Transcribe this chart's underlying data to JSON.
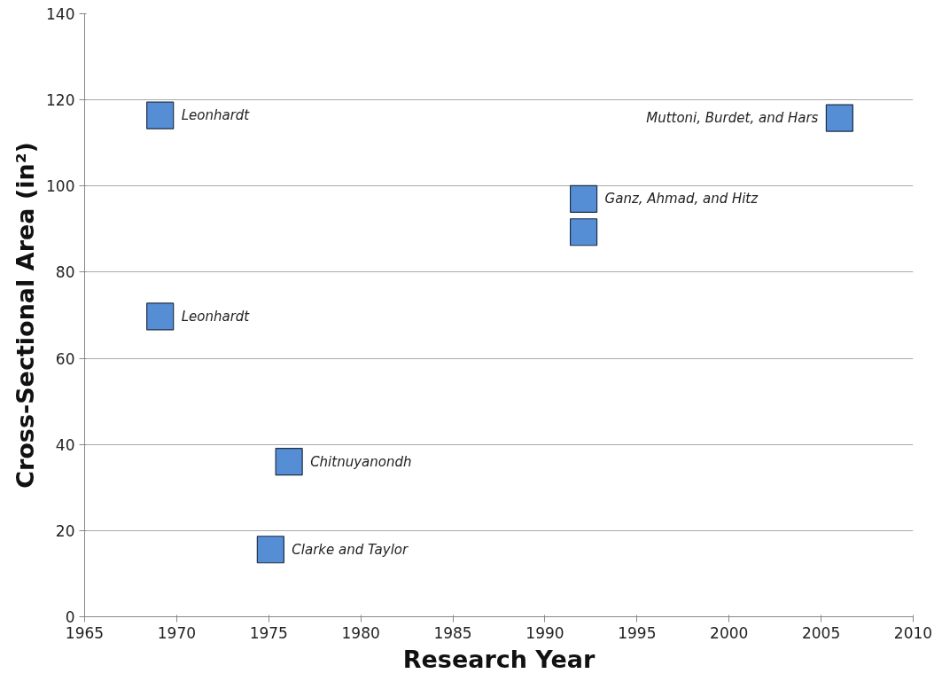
{
  "chart_data": {
    "type": "scatter",
    "xlabel": "Research Year",
    "ylabel": "Cross-Sectional Area (in²)",
    "x": [
      1969.1,
      1969.1,
      1976.1,
      1975.1,
      1992.1,
      1992.1,
      2006.0
    ],
    "values": [
      116.4,
      69.7,
      36.0,
      15.6,
      97.0,
      89.3,
      115.8
    ],
    "color": "#558ed5",
    "marker": "square",
    "xlim": [
      1965,
      2010
    ],
    "xticks": [
      1965,
      1970,
      1975,
      1980,
      1985,
      1990,
      1995,
      2000,
      2005,
      2010
    ],
    "ylim": [
      0,
      140
    ],
    "yticks": [
      0,
      20,
      40,
      60,
      80,
      100,
      120,
      140
    ],
    "grid": "y",
    "annotations": [
      {
        "text": "Leonhardt",
        "x": 1969.1,
        "y": 116.4
      },
      {
        "text": "Leonhardt",
        "x": 1969.1,
        "y": 69.7
      },
      {
        "text": "Chitnuyanondh",
        "x": 1976.1,
        "y": 36.0
      },
      {
        "text": "Clarke and Taylor",
        "x": 1975.1,
        "y": 15.6
      },
      {
        "text": "Ganz, Ahmad, and Hitz",
        "x": 1992.1,
        "y": 97.0
      },
      {
        "text": "Muttoni, Burdet, and Hars",
        "x": 2006.0,
        "y": 115.8
      }
    ]
  }
}
